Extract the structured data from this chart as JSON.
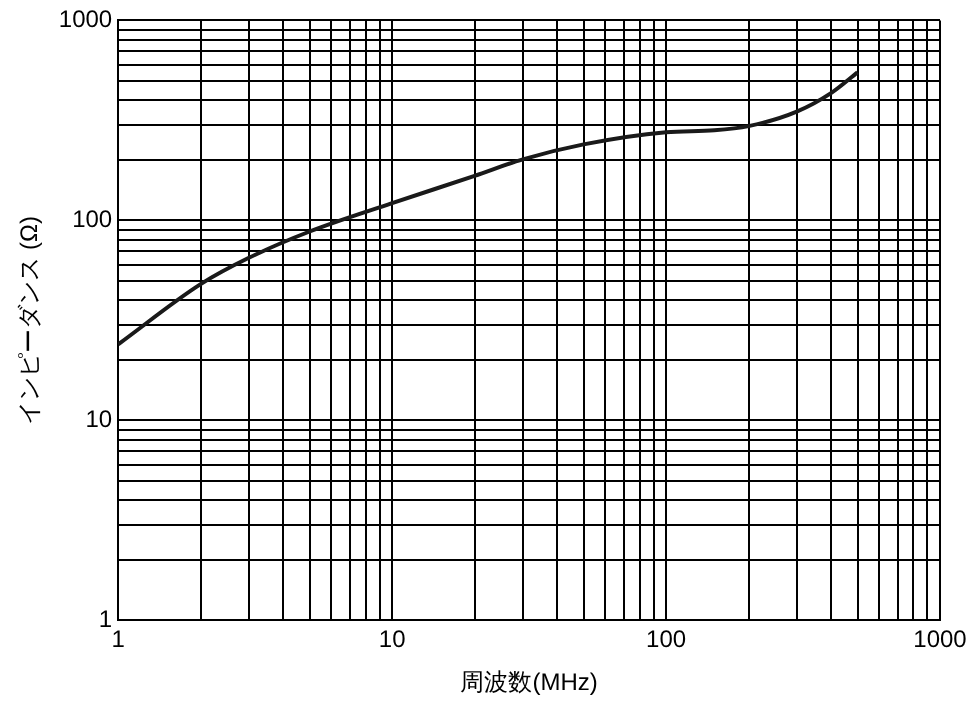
{
  "chart_data": {
    "type": "line",
    "xlabel": "周波数(MHz)",
    "ylabel": "インピーダンス (Ω)",
    "log": "xy",
    "grid": true,
    "legend": false,
    "marker": "none",
    "line_style": "solid",
    "x": [
      1,
      2,
      3,
      5,
      10,
      20,
      30,
      50,
      100,
      150,
      200,
      300,
      400,
      500
    ],
    "series": [
      {
        "color": "#1a1a1a",
        "values": [
          24,
          48,
          65,
          88,
          122,
          167,
          202,
          240,
          276,
          282,
          296,
          350,
          433,
          550
        ]
      }
    ],
    "xlim": [
      1,
      1000
    ],
    "ylim": [
      1,
      1000
    ],
    "xticks": [
      1,
      {
        "value": 2,
        "label": null
      },
      {
        "value": 3,
        "label": null
      },
      {
        "value": 4,
        "label": null
      },
      {
        "value": 5,
        "label": null
      },
      {
        "value": 6,
        "label": null
      },
      {
        "value": 7,
        "label": null
      },
      {
        "value": 8,
        "label": null
      },
      {
        "value": 9,
        "label": null
      },
      10,
      {
        "value": 20,
        "label": null
      },
      {
        "value": 30,
        "label": null
      },
      {
        "value": 40,
        "label": null
      },
      {
        "value": 50,
        "label": null
      },
      {
        "value": 60,
        "label": null
      },
      {
        "value": 70,
        "label": null
      },
      {
        "value": 80,
        "label": null
      },
      {
        "value": 90,
        "label": null
      },
      100,
      {
        "value": 200,
        "label": null
      },
      {
        "value": 300,
        "label": null
      },
      {
        "value": 400,
        "label": null
      },
      {
        "value": 500,
        "label": null
      },
      {
        "value": 600,
        "label": null
      },
      {
        "value": 700,
        "label": null
      },
      {
        "value": 800,
        "label": null
      },
      {
        "value": 900,
        "label": null
      },
      1000
    ],
    "yticks": [
      1,
      {
        "value": 2,
        "label": null
      },
      {
        "value": 3,
        "label": null
      },
      {
        "value": 4,
        "label": null
      },
      {
        "value": 5,
        "label": null
      },
      {
        "value": 6,
        "label": null
      },
      {
        "value": 7,
        "label": null
      },
      {
        "value": 8,
        "label": null
      },
      {
        "value": 9,
        "label": null
      },
      10,
      {
        "value": 20,
        "label": null
      },
      {
        "value": 30,
        "label": null
      },
      {
        "value": 40,
        "label": null
      },
      {
        "value": 50,
        "label": null
      },
      {
        "value": 60,
        "label": null
      },
      {
        "value": 70,
        "label": null
      },
      {
        "value": 80,
        "label": null
      },
      {
        "value": 90,
        "label": null
      },
      100,
      {
        "value": 200,
        "label": null
      },
      {
        "value": 300,
        "label": null
      },
      {
        "value": 400,
        "label": null
      },
      {
        "value": 500,
        "label": null
      },
      {
        "value": 600,
        "label": null
      },
      {
        "value": 700,
        "label": null
      },
      {
        "value": 800,
        "label": null
      },
      {
        "value": 900,
        "label": null
      },
      1000
    ]
  }
}
